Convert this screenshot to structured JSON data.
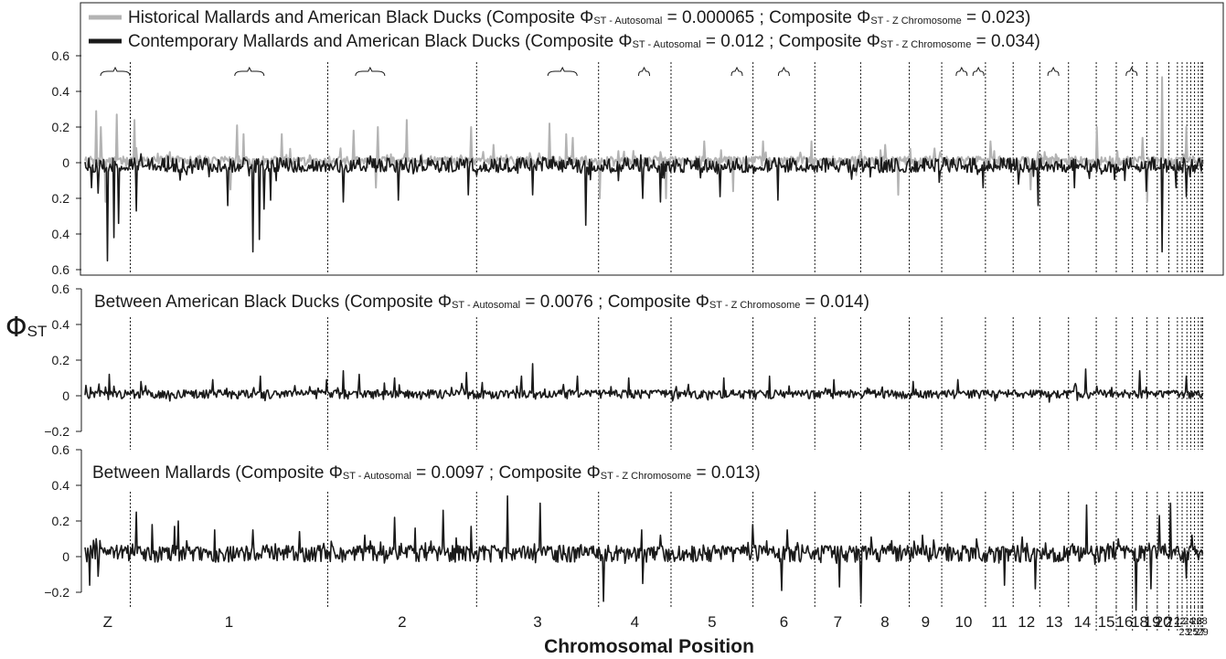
{
  "chart_data": {
    "type": "line",
    "ylabel_symbol": "Φ",
    "ylabel_sub": "ST",
    "xlabel": "Chromosomal Position",
    "chromosomes": [
      {
        "label": "Z",
        "start": 0,
        "end": 0.0405
      },
      {
        "label": "1",
        "start": 0.0405,
        "end": 0.2171
      },
      {
        "label": "2",
        "start": 0.2171,
        "end": 0.3502
      },
      {
        "label": "3",
        "start": 0.3502,
        "end": 0.4593
      },
      {
        "label": "4",
        "start": 0.4593,
        "end": 0.5241
      },
      {
        "label": "5",
        "start": 0.5241,
        "end": 0.5974
      },
      {
        "label": "6",
        "start": 0.5974,
        "end": 0.6527
      },
      {
        "label": "7",
        "start": 0.6527,
        "end": 0.6937
      },
      {
        "label": "8",
        "start": 0.6937,
        "end": 0.7372
      },
      {
        "label": "9",
        "start": 0.7372,
        "end": 0.7662
      },
      {
        "label": "10",
        "start": 0.7662,
        "end": 0.8053
      },
      {
        "label": "11",
        "start": 0.8053,
        "end": 0.8301
      },
      {
        "label": "12",
        "start": 0.8301,
        "end": 0.8539
      },
      {
        "label": "13",
        "start": 0.8539,
        "end": 0.8796
      },
      {
        "label": "14",
        "start": 0.8796,
        "end": 0.9044
      },
      {
        "label": "15",
        "start": 0.9044,
        "end": 0.9223
      },
      {
        "label": "16",
        "start": 0.9223,
        "end": 0.9368
      },
      {
        "label": "18",
        "start": 0.9368,
        "end": 0.9496
      },
      {
        "label": "19",
        "start": 0.9496,
        "end": 0.959
      },
      {
        "label": "20",
        "start": 0.959,
        "end": 0.9693
      },
      {
        "label": "21",
        "start": 0.9693,
        "end": 0.977
      },
      {
        "label": "22",
        "start": 0.977,
        "end": 0.9812
      },
      {
        "label": "23",
        "start": 0.9812,
        "end": 0.9855
      },
      {
        "label": "24",
        "start": 0.9855,
        "end": 0.9889
      },
      {
        "label": "25",
        "start": 0.9889,
        "end": 0.9923
      },
      {
        "label": "26",
        "start": 0.9923,
        "end": 0.9957
      },
      {
        "label": "27",
        "start": 0.9957,
        "end": 0.9983
      },
      {
        "label": "28",
        "start": 0.9983,
        "end": 0.9995
      },
      {
        "label": "29",
        "start": 0.9995,
        "end": 1.0
      }
    ],
    "panels": [
      {
        "id": "top",
        "yticks": [
          "0.6",
          "0.4",
          "0.2",
          "0",
          "0.2",
          "0.4",
          "0.6"
        ],
        "yvals": [
          0.6,
          0.4,
          0.2,
          0,
          -0.2,
          -0.4,
          -0.6
        ],
        "ylim": [
          -0.6,
          0.6
        ],
        "mirrored": true,
        "legend": [
          {
            "color": "#b3b3b3",
            "text": "Historical Mallards and American Black Ducks (Composite Φ",
            "sub1": "ST - Autosomal",
            "mid": " = 0.000065 ; Composite Φ",
            "sub2": "ST - Z Chromosome",
            "end": " = 0.023)"
          },
          {
            "color": "#1a1a1a",
            "text": "Contemporary Mallards and American Black Ducks (Composite Φ",
            "sub1": "ST - Autosomal",
            "mid": " = 0.012 ; Composite Φ",
            "sub2": "ST - Z Chromosome",
            "end": " = 0.034)"
          }
        ],
        "series": [
          {
            "name": "Historical Mallards and American Black Ducks",
            "color": "#b3b3b3",
            "sign": 1,
            "base": 0.02,
            "peaks": [
              [
                0.01,
                0.29
              ],
              [
                0.018,
                0.4
              ],
              [
                0.014,
                0.2
              ],
              [
                0.028,
                0.27
              ],
              [
                0.044,
                0.24
              ],
              [
                0.13,
                0.19
              ],
              [
                0.136,
                0.21
              ],
              [
                0.142,
                0.16
              ],
              [
                0.176,
                0.16
              ],
              [
                0.24,
                0.18
              ],
              [
                0.262,
                0.21
              ],
              [
                0.288,
                0.24
              ],
              [
                0.262,
                0.2
              ],
              [
                0.345,
                0.2
              ],
              [
                0.365,
                0.1
              ],
              [
                0.415,
                0.22
              ],
              [
                0.43,
                0.16
              ],
              [
                0.436,
                0.14
              ],
              [
                0.515,
                0.06
              ],
              [
                0.554,
                0.12
              ],
              [
                0.58,
                0.14
              ],
              [
                0.606,
                0.12
              ],
              [
                0.65,
                0.12
              ],
              [
                0.716,
                0.1
              ],
              [
                0.76,
                0.08
              ],
              [
                0.81,
                0.12
              ],
              [
                0.852,
                0.06
              ],
              [
                0.905,
                0.2
              ],
              [
                0.946,
                0.14
              ],
              [
                0.963,
                0.48
              ],
              [
                0.985,
                0.2
              ]
            ],
            "troughs": [
              [
                0.018,
                0.22
              ],
              [
                0.13,
                0.15
              ],
              [
                0.26,
                0.14
              ],
              [
                0.46,
                0.2
              ],
              [
                0.52,
                0.2
              ],
              [
                0.58,
                0.16
              ],
              [
                0.69,
                0.07
              ],
              [
                0.727,
                0.18
              ],
              [
                0.846,
                0.15
              ],
              [
                0.95,
                0.22
              ]
            ]
          },
          {
            "name": "Contemporary Mallards and American Black Ducks",
            "color": "#1a1a1a",
            "sign": -1,
            "base": 0.03,
            "peaks": [
              [
                0.006,
                0.14
              ],
              [
                0.012,
                0.17
              ],
              [
                0.02,
                0.55
              ],
              [
                0.026,
                0.42
              ],
              [
                0.03,
                0.34
              ],
              [
                0.046,
                0.27
              ],
              [
                0.128,
                0.24
              ],
              [
                0.15,
                0.5
              ],
              [
                0.156,
                0.43
              ],
              [
                0.16,
                0.26
              ],
              [
                0.166,
                0.21
              ],
              [
                0.231,
                0.22
              ],
              [
                0.28,
                0.21
              ],
              [
                0.343,
                0.18
              ],
              [
                0.4,
                0.18
              ],
              [
                0.448,
                0.35
              ],
              [
                0.499,
                0.2
              ],
              [
                0.515,
                0.22
              ],
              [
                0.568,
                0.19
              ],
              [
                0.62,
                0.21
              ],
              [
                0.702,
                0.08
              ],
              [
                0.764,
                0.11
              ],
              [
                0.803,
                0.14
              ],
              [
                0.835,
                0.12
              ],
              [
                0.852,
                0.24
              ],
              [
                0.885,
                0.14
              ],
              [
                0.93,
                0.1
              ],
              [
                0.949,
                0.16
              ],
              [
                0.963,
                0.5
              ],
              [
                0.976,
                0.14
              ],
              [
                0.985,
                0.19
              ]
            ],
            "troughs": [
              [
                0.05,
                0.05
              ],
              [
                0.3,
                0.04
              ]
            ]
          }
        ],
        "brackets": [
          0.027,
          0.147,
          0.255,
          0.427,
          0.5,
          0.583,
          0.625,
          0.784,
          0.799,
          0.866,
          0.936
        ],
        "text": ""
      },
      {
        "id": "middle",
        "yticks": [
          "0.6",
          "0.4",
          "0.2",
          "0",
          "−0.2"
        ],
        "yvals": [
          0.6,
          0.4,
          0.2,
          0,
          -0.2
        ],
        "ylim": [
          -0.2,
          0.6
        ],
        "title": {
          "text": "Between American Black Ducks (Composite Φ",
          "sub1": "ST - Autosomal",
          "mid": " = 0.0076 ; Composite Φ",
          "sub2": "ST - Z Chromosome",
          "end": " = 0.014)"
        },
        "series": [
          {
            "name": "Between American Black Ducks",
            "color": "#1a1a1a",
            "sign": 1,
            "base": 0.018,
            "peaks": [
              [
                0.022,
                0.12
              ],
              [
                0.05,
                0.08
              ],
              [
                0.114,
                0.09
              ],
              [
                0.157,
                0.11
              ],
              [
                0.216,
                0.09
              ],
              [
                0.231,
                0.14
              ],
              [
                0.245,
                0.12
              ],
              [
                0.277,
                0.1
              ],
              [
                0.341,
                0.13
              ],
              [
                0.39,
                0.11
              ],
              [
                0.4,
                0.18
              ],
              [
                0.44,
                0.11
              ],
              [
                0.486,
                0.1
              ],
              [
                0.571,
                0.1
              ],
              [
                0.612,
                0.11
              ],
              [
                0.67,
                0.09
              ],
              [
                0.741,
                0.08
              ],
              [
                0.781,
                0.09
              ],
              [
                0.895,
                0.15
              ],
              [
                0.943,
                0.14
              ],
              [
                0.985,
                0.11
              ]
            ],
            "troughs": [
              [
                0.3,
                0.02
              ],
              [
                0.6,
                0.02
              ]
            ]
          }
        ],
        "text": ""
      },
      {
        "id": "bottom",
        "yticks": [
          "0.6",
          "0.4",
          "0.2",
          "0",
          "−0.2"
        ],
        "yvals": [
          0.6,
          0.4,
          0.2,
          0,
          -0.2
        ],
        "ylim": [
          -0.2,
          0.6
        ],
        "title": {
          "text": "Between Mallards (Composite Φ",
          "sub1": "ST - Autosomal",
          "mid": "  = 0.0097 ; Composite Φ",
          "sub2": "ST - Z Chromosome",
          "end": "  = 0.013)"
        },
        "series": [
          {
            "name": "Between Mallards",
            "color": "#1a1a1a",
            "sign": 1,
            "base": 0.035,
            "peaks": [
              [
                0.012,
                0.12
              ],
              [
                0.046,
                0.25
              ],
              [
                0.06,
                0.18
              ],
              [
                0.08,
                0.17
              ],
              [
                0.083,
                0.2
              ],
              [
                0.116,
                0.15
              ],
              [
                0.15,
                0.15
              ],
              [
                0.192,
                0.14
              ],
              [
                0.25,
                0.12
              ],
              [
                0.277,
                0.22
              ],
              [
                0.295,
                0.16
              ],
              [
                0.32,
                0.26
              ],
              [
                0.345,
                0.17
              ],
              [
                0.378,
                0.34
              ],
              [
                0.407,
                0.3
              ],
              [
                0.464,
                0.18
              ],
              [
                0.498,
                0.15
              ],
              [
                0.515,
                0.12
              ],
              [
                0.597,
                0.18
              ],
              [
                0.628,
                0.15
              ],
              [
                0.703,
                0.11
              ],
              [
                0.749,
                0.12
              ],
              [
                0.797,
                0.1
              ],
              [
                0.838,
                0.11
              ],
              [
                0.896,
                0.29
              ],
              [
                0.924,
                0.1
              ],
              [
                0.961,
                0.23
              ],
              [
                0.971,
                0.3
              ],
              [
                0.99,
                0.12
              ]
            ],
            "troughs": [
              [
                0.004,
                0.16
              ],
              [
                0.012,
                0.11
              ],
              [
                0.464,
                0.25
              ],
              [
                0.499,
                0.15
              ],
              [
                0.623,
                0.19
              ],
              [
                0.675,
                0.17
              ],
              [
                0.694,
                0.26
              ],
              [
                0.822,
                0.16
              ],
              [
                0.85,
                0.18
              ],
              [
                0.94,
                0.3
              ],
              [
                0.953,
                0.18
              ],
              [
                0.985,
                0.12
              ]
            ]
          }
        ],
        "text": ""
      }
    ]
  }
}
